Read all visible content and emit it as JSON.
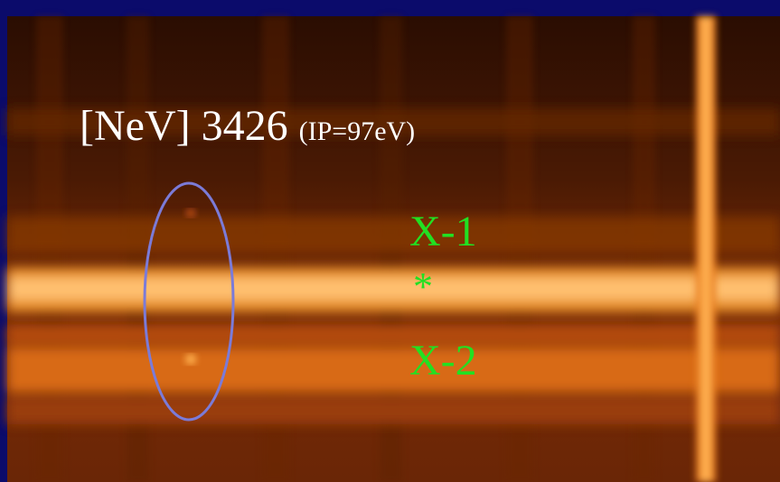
{
  "labels": {
    "line": "[NeV] 3426",
    "ionization": "(IP=97eV)",
    "x1": "X-1",
    "star": "*",
    "x2": "X-2"
  }
}
